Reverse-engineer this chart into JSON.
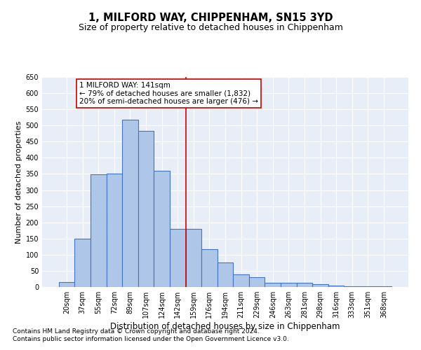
{
  "title": "1, MILFORD WAY, CHIPPENHAM, SN15 3YD",
  "subtitle": "Size of property relative to detached houses in Chippenham",
  "xlabel": "Distribution of detached houses by size in Chippenham",
  "ylabel": "Number of detached properties",
  "categories": [
    "20sqm",
    "37sqm",
    "55sqm",
    "72sqm",
    "89sqm",
    "107sqm",
    "124sqm",
    "142sqm",
    "159sqm",
    "176sqm",
    "194sqm",
    "211sqm",
    "229sqm",
    "246sqm",
    "263sqm",
    "281sqm",
    "298sqm",
    "316sqm",
    "333sqm",
    "351sqm",
    "368sqm"
  ],
  "values": [
    15,
    150,
    348,
    350,
    517,
    483,
    360,
    180,
    180,
    118,
    76,
    40,
    30,
    13,
    13,
    12,
    8,
    5,
    3,
    3,
    3
  ],
  "bar_color": "#aec6e8",
  "bar_edge_color": "#4472c4",
  "bar_linewidth": 0.8,
  "background_color": "#e8eef8",
  "grid_color": "#ffffff",
  "vline_x": 7.5,
  "vline_color": "#cc0000",
  "annotation_text": "1 MILFORD WAY: 141sqm\n← 79% of detached houses are smaller (1,832)\n20% of semi-detached houses are larger (476) →",
  "annotation_box_color": "white",
  "annotation_box_edgecolor": "#cc0000",
  "ylim": [
    0,
    650
  ],
  "yticks": [
    0,
    50,
    100,
    150,
    200,
    250,
    300,
    350,
    400,
    450,
    500,
    550,
    600,
    650
  ],
  "footnote1": "Contains HM Land Registry data © Crown copyright and database right 2024.",
  "footnote2": "Contains public sector information licensed under the Open Government Licence v3.0.",
  "title_fontsize": 10.5,
  "subtitle_fontsize": 9,
  "xlabel_fontsize": 8.5,
  "ylabel_fontsize": 8,
  "tick_fontsize": 7,
  "annotation_fontsize": 7.5,
  "footnote_fontsize": 6.5
}
